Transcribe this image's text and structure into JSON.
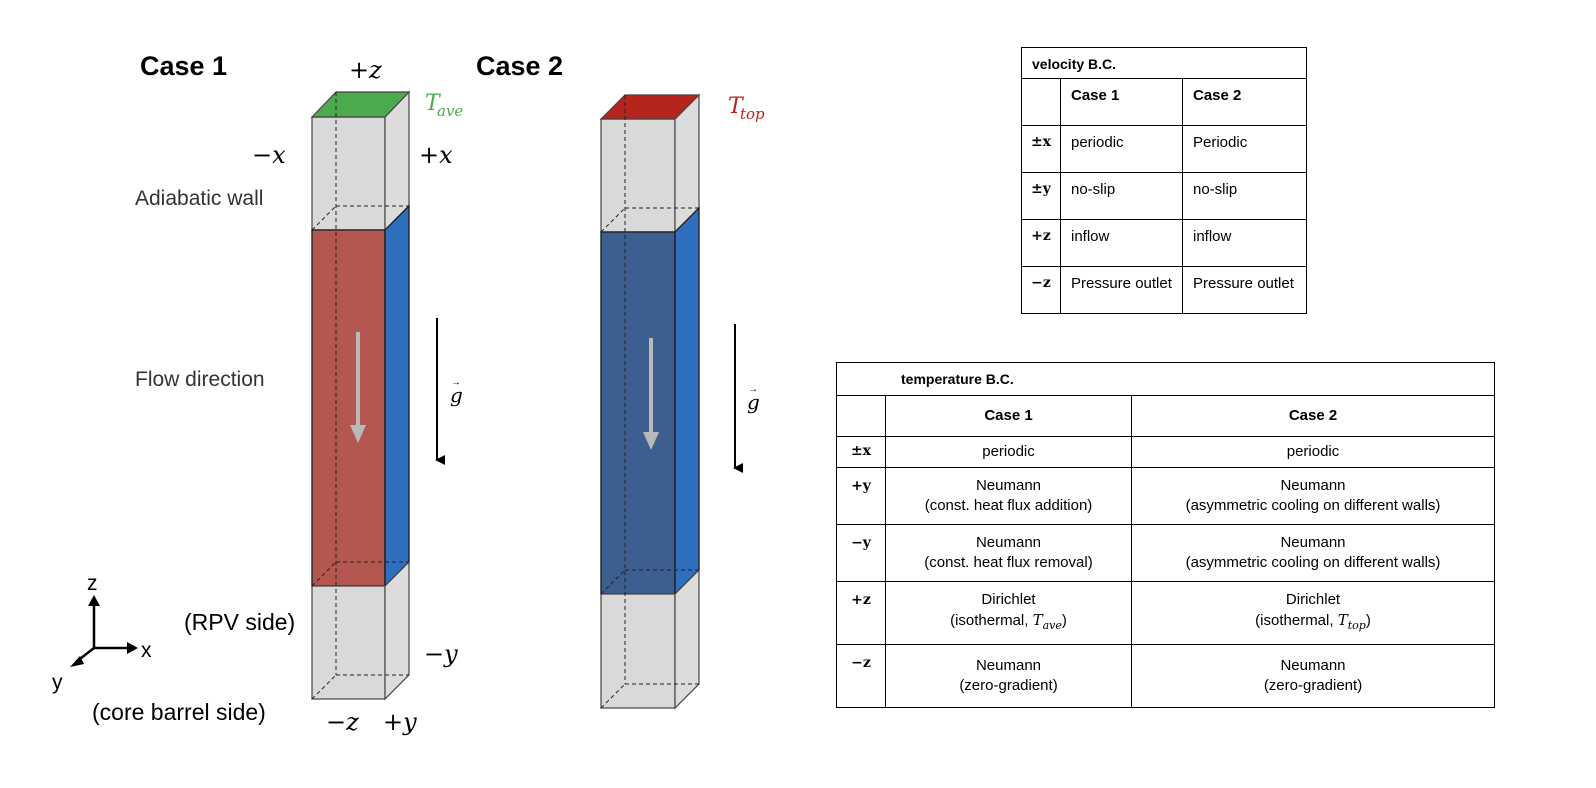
{
  "diagram": {
    "case1": {
      "title": "Case 1",
      "top_temp_main": "T",
      "top_temp_sub": "ave",
      "top_color": "#4caa4e",
      "heated_face_color": "#b55751",
      "side_face_color": "#2f6fbe"
    },
    "case2": {
      "title": "Case 2",
      "top_temp_main": "T",
      "top_temp_sub": "top",
      "top_color": "#b5251d",
      "front_face_color": "#3d5f8f",
      "side_face_color": "#2f6fbe"
    },
    "labels": {
      "plus_z": "+z",
      "minus_x": "−x",
      "plus_x": "+x",
      "adiabatic_wall": "Adiabatic wall",
      "flow_direction": "Flow direction",
      "gravity": "g",
      "rpv_side": "(RPV side)",
      "core_barrel_side": "(core barrel side)",
      "minus_y": "−y",
      "minus_z": "−z",
      "plus_y": "+y"
    },
    "axes": {
      "z": "z",
      "x": "x",
      "y": "y"
    }
  },
  "velocity_table": {
    "title": "velocity B.C.",
    "headers": [
      "",
      "Case 1",
      "Case 2"
    ],
    "rows": [
      {
        "face": "±x",
        "case1": "periodic",
        "case2": "Periodic"
      },
      {
        "face": "±y",
        "case1": "no-slip",
        "case2": "no-slip"
      },
      {
        "face": "+z",
        "case1": "inflow",
        "case2": "inflow"
      },
      {
        "face": "−z",
        "case1": "Pressure outlet",
        "case2": "Pressure outlet"
      }
    ]
  },
  "temperature_table": {
    "title": "temperature B.C.",
    "headers": [
      "",
      "Case 1",
      "Case 2"
    ],
    "rows": [
      {
        "face": "±x",
        "case1": [
          "periodic"
        ],
        "case2": [
          "periodic"
        ]
      },
      {
        "face": "+y",
        "case1": [
          "Neumann",
          "(const. heat flux addition)"
        ],
        "case2": [
          "Neumann",
          "(asymmetric cooling on different walls)"
        ]
      },
      {
        "face": "−y",
        "case1": [
          "Neumann",
          "(const. heat flux removal)"
        ],
        "case2": [
          "Neumann",
          "(asymmetric cooling on different walls)"
        ]
      },
      {
        "face": "+z",
        "case1": [
          "Dirichlet",
          "(isothermal, ",
          "T",
          "ave",
          ")"
        ],
        "case2": [
          "Dirichlet",
          "(isothermal, ",
          "T",
          "top",
          ")"
        ]
      },
      {
        "face": "−z",
        "case1": [
          "Neumann",
          "(zero-gradient)"
        ],
        "case2": [
          "Neumann",
          "(zero-gradient)"
        ]
      }
    ]
  }
}
